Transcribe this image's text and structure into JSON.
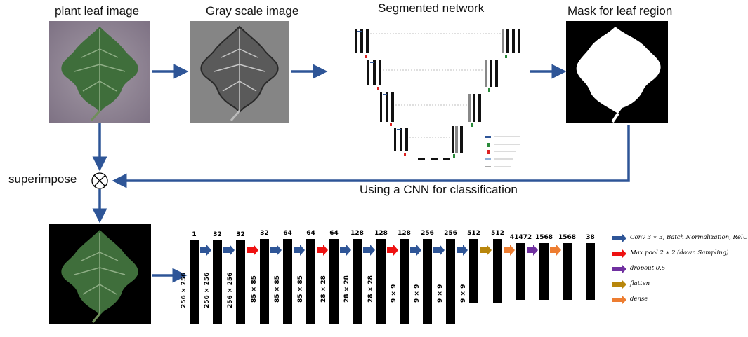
{
  "labels": {
    "leaf": "plant leaf image",
    "gray": "Gray scale image",
    "segnet": "Segmented network",
    "mask": "Mask for leaf region",
    "superimpose": "superimpose",
    "cnn": "Using a CNN for classification"
  },
  "cnn": {
    "channels": [
      "1",
      "32",
      "32",
      "32",
      "64",
      "64",
      "64",
      "128",
      "128",
      "128",
      "256",
      "256",
      "512",
      "512",
      "41472",
      "1568",
      "1568",
      "38"
    ],
    "dims": [
      "256 × 256",
      "256 × 256",
      "256 × 256",
      "85 × 85",
      "85 × 85",
      "85 × 85",
      "28 × 28",
      "28 × 28",
      "28 × 28",
      "9 × 9",
      "9 × 9",
      "9 × 9",
      "9 × 9"
    ],
    "ops": [
      "conv",
      "conv",
      "max",
      "conv",
      "conv",
      "max",
      "conv",
      "conv",
      "max",
      "conv",
      "conv",
      "conv",
      "flatten",
      "dense",
      "dropout",
      "dense"
    ]
  },
  "legend": [
    {
      "key": "conv",
      "color": "#2e5597",
      "text": "Conv 3 ∗ 3, Batch Normalization, RelU"
    },
    {
      "key": "max",
      "color": "#ee1111",
      "text": "Max pool 2 ∗ 2 (down Sampling)"
    },
    {
      "key": "dropout",
      "color": "#7030a0",
      "text": "dropout 0.5"
    },
    {
      "key": "flatten",
      "color": "#b8860b",
      "text": "flatten"
    },
    {
      "key": "dense",
      "color": "#ed7d31",
      "text": "dense"
    }
  ],
  "colors": {
    "flow_arrow": "#2e5597",
    "leaf_bg": "#8f8593",
    "leaf_green": "#3d6b3a"
  }
}
